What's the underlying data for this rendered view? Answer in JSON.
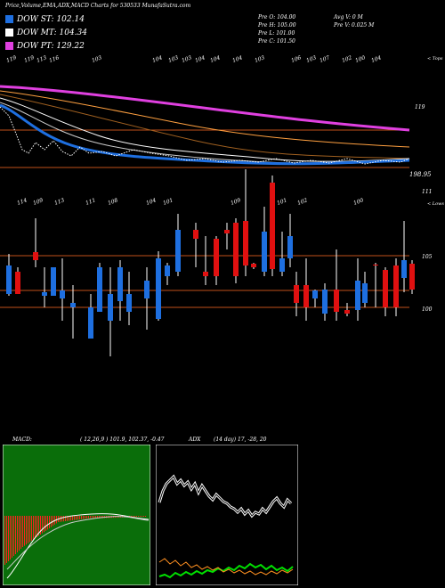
{
  "header": {
    "title": "Price,Volume,EMA,ADX,MACD Charts for 530533 MunafaSutra.com"
  },
  "legend": [
    {
      "label": "DOW ST: 102.14",
      "color": "#1e6fe0"
    },
    {
      "label": "DOW MT: 104.34",
      "color": "#ffffff"
    },
    {
      "label": "DOW PT: 129.22",
      "color": "#e040e0"
    }
  ],
  "quote": {
    "open": "Pre O: 104.00",
    "high": "Pre H: 105.00",
    "low": "Pre L: 101.00",
    "close": "Pre C: 101.50",
    "avg_vol": "Avg V: 0 M",
    "vol": "Pre V: 0.025 M"
  },
  "chart_data": [
    {
      "type": "line",
      "name": "price-ema-panel",
      "right_labels": [
        "< Tops",
        "119",
        "198.95",
        "111"
      ],
      "top_tick_labels": [
        "119",
        "119",
        "113",
        "116",
        "103",
        "104",
        "103",
        "103",
        "104",
        "104",
        "104",
        "103",
        "106",
        "103",
        "107",
        "102",
        "100",
        "104"
      ],
      "reference_lines": [
        118,
        99
      ],
      "colors": {
        "ema_short": "#1e6fe0",
        "ema_mid": "#ffffff",
        "ema_long": "#ffa040",
        "ema_pt": "#e040e0",
        "reference": "#c0501a"
      }
    },
    {
      "type": "bar",
      "name": "candle-panel",
      "right_labels": [
        "< Lows",
        "105",
        "100"
      ],
      "bottom_tick_labels": [
        "114",
        "109",
        "113",
        "111",
        "108",
        "104",
        "101",
        "109",
        "101",
        "102",
        "100"
      ],
      "reference_lines": [
        105,
        102,
        100
      ],
      "colors": {
        "up": "#1e6fe0",
        "down": "#e01010",
        "wick": "#ffffff",
        "reference": "#c0501a"
      }
    },
    {
      "type": "area",
      "name": "macd-panel",
      "label": "MACD:",
      "values_text": "( 12,26,9 ) 101.9, 102.37, -0.47",
      "colors": {
        "bg": "#0a6e0a",
        "hist": "#ff2020",
        "line": "#ffffff"
      }
    },
    {
      "type": "line",
      "name": "adx-panel",
      "label": "ADX",
      "values_text": "(14 day) 17, -28, 20",
      "colors": {
        "adx": "#ffffff",
        "plus_di": "#00e000",
        "minus_di": "#ff9020"
      }
    }
  ]
}
